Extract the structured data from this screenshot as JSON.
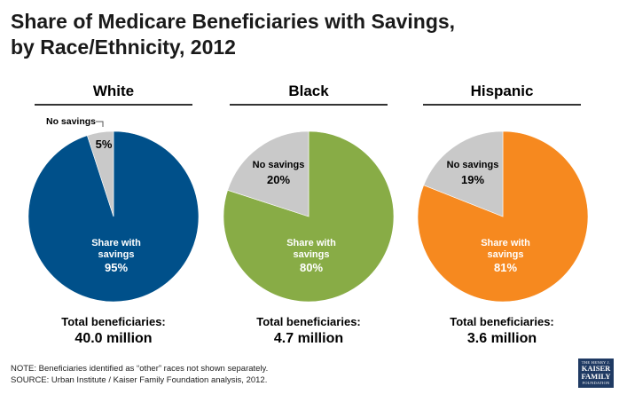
{
  "title_line1": "Share of Medicare Beneficiaries with Savings,",
  "title_line2": "by Race/Ethnicity, 2012",
  "colors": {
    "white_share": "#00508a",
    "black_share": "#88ac46",
    "hispanic_share": "#f6891f",
    "no_savings": "#c9c9c9"
  },
  "chart_data": [
    {
      "type": "pie",
      "title": "White",
      "slices": [
        {
          "label": "No savings",
          "value": 5,
          "display": "5%",
          "color": "#c9c9c9"
        },
        {
          "label": "Share with savings",
          "value": 95,
          "display": "95%",
          "color": "#00508a"
        }
      ],
      "total_label": "Total beneficiaries:",
      "total_value": "40.0 million"
    },
    {
      "type": "pie",
      "title": "Black",
      "slices": [
        {
          "label": "No savings",
          "value": 20,
          "display": "20%",
          "color": "#c9c9c9"
        },
        {
          "label": "Share with savings",
          "value": 80,
          "display": "80%",
          "color": "#88ac46"
        }
      ],
      "total_label": "Total beneficiaries:",
      "total_value": "4.7 million"
    },
    {
      "type": "pie",
      "title": "Hispanic",
      "slices": [
        {
          "label": "No savings",
          "value": 19,
          "display": "19%",
          "color": "#c9c9c9"
        },
        {
          "label": "Share with savings",
          "value": 81,
          "display": "81%",
          "color": "#f6891f"
        }
      ],
      "total_label": "Total beneficiaries:",
      "total_value": "3.6 million"
    }
  ],
  "footnote_note": "NOTE: Beneficiaries identified as “other” races not shown separately.",
  "footnote_source": "SOURCE: Urban Institute / Kaiser Family Foundation analysis, 2012.",
  "logo": {
    "line1": "THE HENRY J.",
    "line2a": "KAISER",
    "line2b": "FAMILY",
    "line3": "FOUNDATION"
  }
}
